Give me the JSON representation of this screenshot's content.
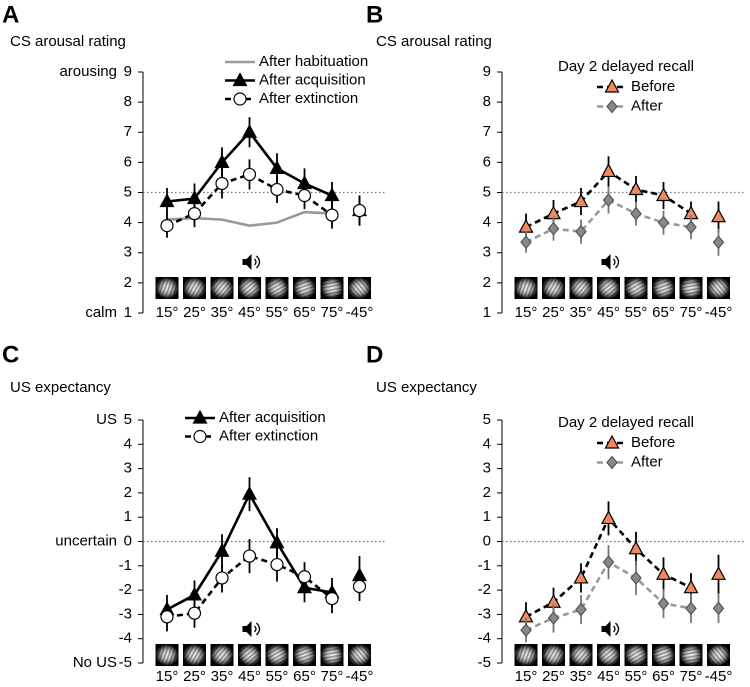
{
  "chart_data": [
    {
      "type": "line",
      "panel_label": "A",
      "title": "CS arousal rating",
      "categories": [
        "15°",
        "25°",
        "35°",
        "45°",
        "55°",
        "65°",
        "75°",
        "-45°"
      ],
      "ylim": [
        1,
        9
      ],
      "yticks": [
        1,
        2,
        3,
        4,
        5,
        6,
        7,
        8,
        9
      ],
      "axis_annotations": [
        {
          "value": 9,
          "label": "arousing"
        },
        {
          "value": 1,
          "label": "calm"
        }
      ],
      "reference_line": 5,
      "series": [
        {
          "name": "After habituation",
          "color": "#999999",
          "dash": false,
          "marker": "none",
          "marker_fill": "#999999",
          "values": [
            4.1,
            4.15,
            4.1,
            3.9,
            4.0,
            4.35,
            4.3,
            null
          ]
        },
        {
          "name": "After acquisition",
          "color": "#000000",
          "dash": false,
          "marker": "triangle",
          "marker_fill": "#000000",
          "values": [
            4.7,
            4.8,
            6.0,
            7.0,
            5.8,
            5.3,
            4.9,
            4.4
          ],
          "errors": [
            0.45,
            0.5,
            0.5,
            0.5,
            0.5,
            0.5,
            0.45,
            0.5
          ]
        },
        {
          "name": "After extinction",
          "color": "#000000",
          "dash": true,
          "marker": "circle",
          "marker_fill": "#ffffff",
          "values": [
            3.9,
            4.3,
            5.3,
            5.6,
            5.1,
            4.9,
            4.25,
            4.4
          ],
          "errors": [
            0.4,
            0.45,
            0.5,
            0.5,
            0.45,
            0.45,
            0.45,
            0.5
          ]
        }
      ]
    },
    {
      "type": "line",
      "panel_label": "B",
      "title": "CS arousal rating",
      "legend_title": "Day 2 delayed recall",
      "categories": [
        "15°",
        "25°",
        "35°",
        "45°",
        "55°",
        "65°",
        "75°",
        "-45°"
      ],
      "ylim": [
        1,
        9
      ],
      "yticks": [
        1,
        2,
        3,
        4,
        5,
        6,
        7,
        8,
        9
      ],
      "reference_line": 5,
      "series": [
        {
          "name": "Before",
          "color": "#000000",
          "dash": true,
          "marker": "triangle",
          "marker_fill": "#ee8a5e",
          "values": [
            3.85,
            4.3,
            4.7,
            5.7,
            5.1,
            4.9,
            4.3,
            4.2
          ],
          "errors": [
            0.45,
            0.45,
            0.45,
            0.5,
            0.45,
            0.45,
            0.4,
            0.5
          ]
        },
        {
          "name": "After",
          "color": "#999999",
          "dash": true,
          "marker": "diamond",
          "marker_fill": "#888888",
          "values": [
            3.35,
            3.8,
            3.7,
            4.75,
            4.3,
            4.0,
            3.85,
            3.35
          ],
          "errors": [
            0.35,
            0.4,
            0.4,
            0.45,
            0.4,
            0.4,
            0.4,
            0.45
          ]
        }
      ]
    },
    {
      "type": "line",
      "panel_label": "C",
      "title": "US expectancy",
      "categories": [
        "15°",
        "25°",
        "35°",
        "45°",
        "55°",
        "65°",
        "75°",
        "-45°"
      ],
      "ylim": [
        -5,
        5
      ],
      "yticks": [
        -5,
        -4,
        -3,
        -2,
        -1,
        0,
        1,
        2,
        3,
        4,
        5
      ],
      "axis_annotations": [
        {
          "value": 5,
          "label": "US"
        },
        {
          "value": 0,
          "label": "uncertain"
        },
        {
          "value": -5,
          "label": "No US"
        }
      ],
      "reference_line": 0,
      "series": [
        {
          "name": "After acquisition",
          "color": "#000000",
          "dash": false,
          "marker": "triangle",
          "marker_fill": "#000000",
          "values": [
            -2.8,
            -2.2,
            -0.4,
            1.95,
            -0.05,
            -1.9,
            -2.1,
            -1.4
          ],
          "errors": [
            0.6,
            0.6,
            0.7,
            0.7,
            0.6,
            0.6,
            0.6,
            0.8
          ]
        },
        {
          "name": "After extinction",
          "color": "#000000",
          "dash": true,
          "marker": "circle",
          "marker_fill": "#ffffff",
          "values": [
            -3.1,
            -2.95,
            -1.5,
            -0.6,
            -0.95,
            -1.45,
            -2.35,
            -1.85
          ],
          "errors": [
            0.6,
            0.6,
            0.6,
            0.7,
            0.7,
            0.6,
            0.6,
            0.6
          ]
        }
      ]
    },
    {
      "type": "line",
      "panel_label": "D",
      "title": "US expectancy",
      "legend_title": "Day 2 delayed recall",
      "categories": [
        "15°",
        "25°",
        "35°",
        "45°",
        "55°",
        "65°",
        "75°",
        "-45°"
      ],
      "ylim": [
        -5,
        5
      ],
      "yticks": [
        -5,
        -4,
        -3,
        -2,
        -1,
        0,
        1,
        2,
        3,
        4,
        5
      ],
      "reference_line": 0,
      "series": [
        {
          "name": "Before",
          "color": "#000000",
          "dash": true,
          "marker": "triangle",
          "marker_fill": "#ee8a5e",
          "values": [
            -3.1,
            -2.5,
            -1.5,
            0.95,
            -0.3,
            -1.35,
            -1.9,
            -1.35
          ],
          "errors": [
            0.6,
            0.6,
            0.6,
            0.7,
            0.7,
            0.7,
            0.6,
            0.8
          ]
        },
        {
          "name": "After",
          "color": "#999999",
          "dash": true,
          "marker": "diamond",
          "marker_fill": "#888888",
          "values": [
            -3.65,
            -3.15,
            -2.8,
            -0.85,
            -1.5,
            -2.55,
            -2.75,
            -2.75
          ],
          "errors": [
            0.5,
            0.6,
            0.6,
            0.7,
            0.7,
            0.6,
            0.6,
            0.6
          ]
        }
      ]
    }
  ]
}
